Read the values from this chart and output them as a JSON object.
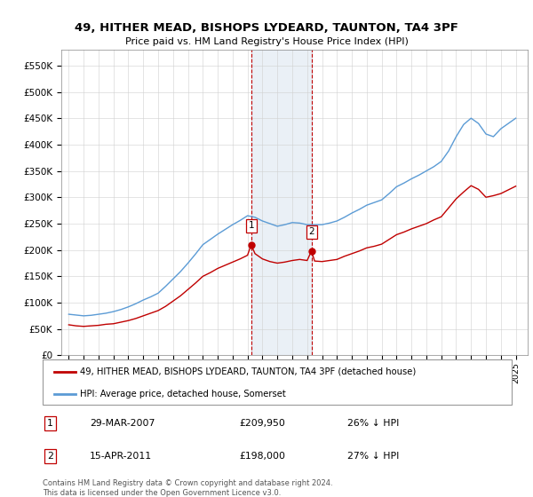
{
  "title": "49, HITHER MEAD, BISHOPS LYDEARD, TAUNTON, TA4 3PF",
  "subtitle": "Price paid vs. HM Land Registry's House Price Index (HPI)",
  "legend_line1": "49, HITHER MEAD, BISHOPS LYDEARD, TAUNTON, TA4 3PF (detached house)",
  "legend_line2": "HPI: Average price, detached house, Somerset",
  "transaction1_date": "29-MAR-2007",
  "transaction1_price": "£209,950",
  "transaction1_hpi": "26% ↓ HPI",
  "transaction2_date": "15-APR-2011",
  "transaction2_price": "£198,000",
  "transaction2_hpi": "27% ↓ HPI",
  "footer": "Contains HM Land Registry data © Crown copyright and database right 2024.\nThis data is licensed under the Open Government Licence v3.0.",
  "hpi_color": "#5b9bd5",
  "price_color": "#c00000",
  "shaded_region_color": "#dce6f1",
  "ylim": [
    0,
    580000
  ],
  "yticks": [
    0,
    50000,
    100000,
    150000,
    200000,
    250000,
    300000,
    350000,
    400000,
    450000,
    500000,
    550000
  ],
  "hpi_years": [
    1995,
    1995.5,
    1996,
    1996.5,
    1997,
    1997.5,
    1998,
    1998.5,
    1999,
    1999.5,
    2000,
    2000.5,
    2001,
    2001.5,
    2002,
    2002.5,
    2003,
    2003.5,
    2004,
    2004.5,
    2005,
    2005.5,
    2006,
    2006.5,
    2007,
    2007.5,
    2008,
    2008.5,
    2009,
    2009.5,
    2010,
    2010.5,
    2011,
    2011.5,
    2012,
    2012.5,
    2013,
    2013.5,
    2014,
    2014.5,
    2015,
    2015.5,
    2016,
    2016.5,
    2017,
    2017.5,
    2018,
    2018.5,
    2019,
    2019.5,
    2020,
    2020.5,
    2021,
    2021.5,
    2022,
    2022.5,
    2023,
    2023.5,
    2024,
    2024.5,
    2025
  ],
  "hpi_values": [
    78000,
    76500,
    75000,
    76000,
    78000,
    80000,
    83000,
    87000,
    92000,
    98000,
    105000,
    111000,
    118000,
    131000,
    145000,
    159000,
    175000,
    192000,
    210000,
    220000,
    230000,
    239000,
    248000,
    256000,
    265000,
    262000,
    255000,
    250000,
    245000,
    248000,
    252000,
    251000,
    248000,
    248000,
    248000,
    251000,
    255000,
    262000,
    270000,
    277000,
    285000,
    290000,
    295000,
    307000,
    320000,
    327000,
    335000,
    342000,
    350000,
    358000,
    368000,
    388000,
    415000,
    438000,
    450000,
    440000,
    420000,
    415000,
    430000,
    440000,
    450000
  ],
  "price_line_years": [
    1995,
    1995.5,
    1996,
    1996.5,
    1997,
    1997.5,
    1998,
    1998.5,
    1999,
    1999.5,
    2000,
    2000.5,
    2001,
    2001.5,
    2002,
    2002.5,
    2003,
    2003.5,
    2004,
    2004.5,
    2005,
    2005.5,
    2006,
    2006.5,
    2007,
    2007.24,
    2007.5,
    2008,
    2008.5,
    2009,
    2009.5,
    2010,
    2010.5,
    2011,
    2011.29,
    2011.5,
    2012,
    2012.5,
    2013,
    2013.5,
    2014,
    2014.5,
    2015,
    2015.5,
    2016,
    2016.5,
    2017,
    2017.5,
    2018,
    2018.5,
    2019,
    2019.5,
    2020,
    2020.5,
    2021,
    2021.5,
    2022,
    2022.5,
    2023,
    2023.5,
    2024,
    2024.5,
    2025
  ],
  "price_line_values": [
    58000,
    56000,
    55000,
    56000,
    57000,
    59000,
    60000,
    63000,
    66000,
    70000,
    75000,
    80000,
    85000,
    93000,
    103000,
    113000,
    125000,
    137000,
    150000,
    157000,
    165000,
    171000,
    177000,
    183000,
    190000,
    209950,
    193000,
    183000,
    178000,
    175000,
    177000,
    180000,
    182000,
    180000,
    198000,
    179000,
    178000,
    180000,
    182000,
    188000,
    193000,
    198000,
    204000,
    207000,
    211000,
    220000,
    229000,
    234000,
    240000,
    245000,
    250000,
    257000,
    263000,
    280000,
    297000,
    310000,
    322000,
    315000,
    300000,
    303000,
    307000,
    314000,
    321000
  ],
  "sold_years": [
    2007.24,
    2011.29
  ],
  "sold_values": [
    209950,
    198000
  ],
  "xlim": [
    1994.5,
    2025.8
  ],
  "xtick_years": [
    1995,
    1996,
    1997,
    1998,
    1999,
    2000,
    2001,
    2002,
    2003,
    2004,
    2005,
    2006,
    2007,
    2008,
    2009,
    2010,
    2011,
    2012,
    2013,
    2014,
    2015,
    2016,
    2017,
    2018,
    2019,
    2020,
    2021,
    2022,
    2023,
    2024,
    2025
  ]
}
